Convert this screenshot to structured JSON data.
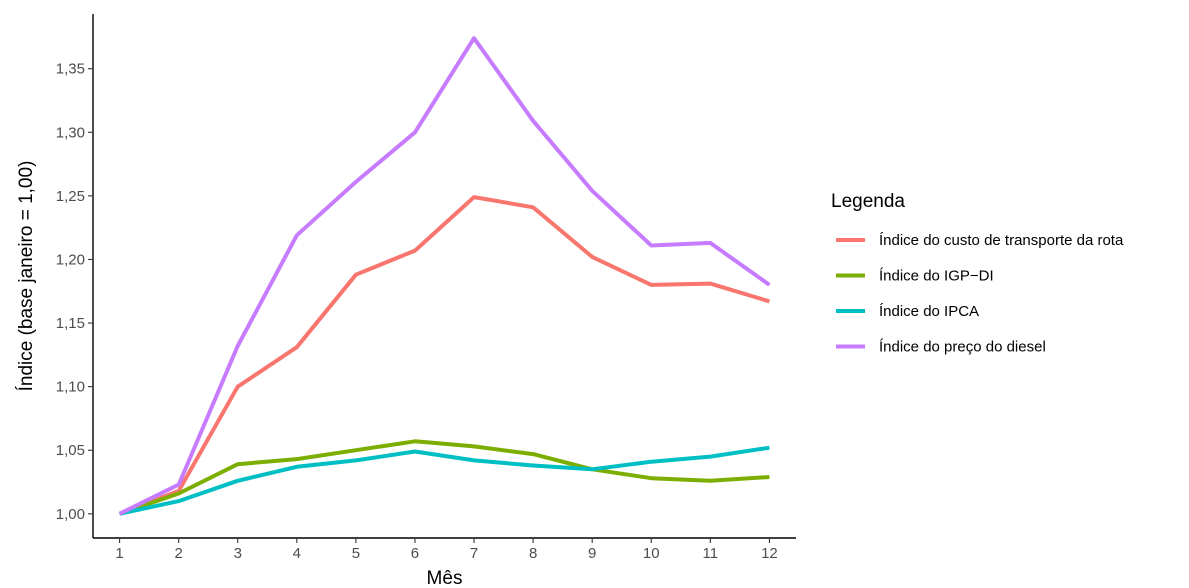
{
  "chart_data": {
    "type": "line",
    "title": "",
    "xlabel": "Mês",
    "ylabel": "Índice (base janeiro = 1,00)",
    "x": [
      1,
      2,
      3,
      4,
      5,
      6,
      7,
      8,
      9,
      10,
      11,
      12
    ],
    "x_tick_labels": [
      "1",
      "2",
      "3",
      "4",
      "5",
      "6",
      "7",
      "8",
      "9",
      "10",
      "11",
      "12"
    ],
    "y_ticks": [
      1.0,
      1.05,
      1.1,
      1.15,
      1.2,
      1.25,
      1.3,
      1.35
    ],
    "y_tick_labels": [
      "1,00",
      "1,05",
      "1,10",
      "1,15",
      "1,20",
      "1,25",
      "1,30",
      "1,35"
    ],
    "xlim": [
      0.55,
      12.45
    ],
    "ylim": [
      0.981,
      1.393
    ],
    "grid": false,
    "legend": {
      "title": "Legenda",
      "placement": "right"
    },
    "series": [
      {
        "name": "Índice do custo de transporte da rota",
        "color": "#F8766D",
        "values": [
          1.0,
          1.018,
          1.1,
          1.131,
          1.188,
          1.207,
          1.249,
          1.241,
          1.202,
          1.18,
          1.181,
          1.167
        ]
      },
      {
        "name": "Índice do IGP−DI",
        "color": "#7CAE00",
        "values": [
          1.0,
          1.016,
          1.039,
          1.043,
          1.05,
          1.057,
          1.053,
          1.047,
          1.035,
          1.028,
          1.026,
          1.029
        ]
      },
      {
        "name": "Índice do IPCA",
        "color": "#00BFC4",
        "values": [
          1.0,
          1.01,
          1.026,
          1.037,
          1.042,
          1.049,
          1.042,
          1.038,
          1.035,
          1.041,
          1.045,
          1.052
        ]
      },
      {
        "name": "Índice do preço do diesel",
        "color": "#C77CFF",
        "values": [
          1.0,
          1.023,
          1.132,
          1.219,
          1.261,
          1.3,
          1.374,
          1.309,
          1.254,
          1.211,
          1.213,
          1.18
        ]
      }
    ]
  }
}
